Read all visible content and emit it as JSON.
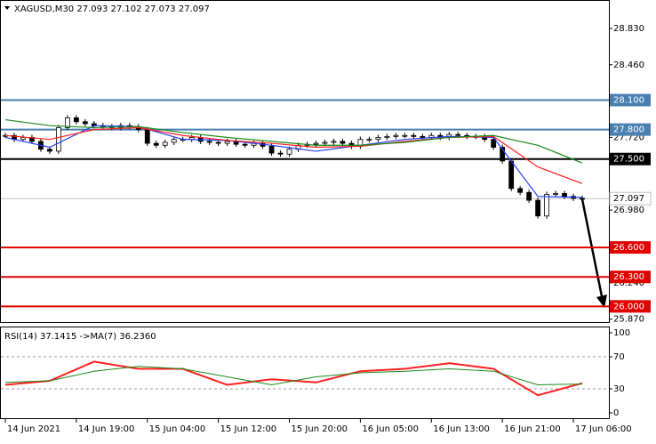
{
  "chart_data": [
    {
      "type": "candlestick",
      "title": "XAGUSD,M30  27.093 27.102 27.073 27.097",
      "closes": [
        27.74,
        27.7,
        27.72,
        27.68,
        27.6,
        27.58,
        27.82,
        27.92,
        27.88,
        27.86,
        27.84,
        27.83,
        27.82,
        27.84,
        27.83,
        27.8,
        27.66,
        27.64,
        27.67,
        27.7,
        27.7,
        27.72,
        27.68,
        27.67,
        27.66,
        27.68,
        27.65,
        27.64,
        27.66,
        27.63,
        27.56,
        27.55,
        27.6,
        27.64,
        27.65,
        27.66,
        27.67,
        27.68,
        27.66,
        27.63,
        27.7,
        27.7,
        27.72,
        27.73,
        27.74,
        27.74,
        27.73,
        27.72,
        27.74,
        27.72,
        27.75,
        27.74,
        27.73,
        27.73,
        27.7,
        27.62,
        27.48,
        27.2,
        27.16,
        27.08,
        26.92,
        27.14,
        27.15,
        27.12,
        27.1,
        27.097
      ],
      "ma_x": [
        0,
        5,
        10,
        15,
        20,
        25,
        30,
        35,
        40,
        45,
        50,
        55,
        60,
        65
      ],
      "series": [
        {
          "color": "#1f3fff",
          "values": [
            27.72,
            27.62,
            27.84,
            27.83,
            27.7,
            27.69,
            27.64,
            27.58,
            27.64,
            27.7,
            27.73,
            27.72,
            27.12,
            27.11
          ]
        },
        {
          "color": "#ff2020",
          "values": [
            27.74,
            27.7,
            27.8,
            27.82,
            27.74,
            27.69,
            27.66,
            27.62,
            27.63,
            27.68,
            27.72,
            27.73,
            27.42,
            27.25
          ]
        },
        {
          "color": "#1a8a1a",
          "values": [
            27.9,
            27.84,
            27.82,
            27.83,
            27.77,
            27.72,
            27.68,
            27.64,
            27.64,
            27.67,
            27.72,
            27.74,
            27.64,
            27.46
          ]
        }
      ],
      "levels": [
        {
          "value": 28.1,
          "label": "28.100",
          "color": "#4a7fb0"
        },
        {
          "value": 27.8,
          "label": "27.800",
          "color": "#4a7fb0"
        },
        {
          "value": 27.5,
          "label": "27.500",
          "color": "#000000"
        },
        {
          "value": 26.6,
          "label": "26.600",
          "color": "#e00000"
        },
        {
          "value": 26.3,
          "label": "26.300",
          "color": "#e00000"
        },
        {
          "value": 26.0,
          "label": "26.000",
          "color": "#e00000"
        }
      ],
      "current": {
        "value": 27.097,
        "label": "27.097"
      },
      "ylim": [
        25.84,
        29.11
      ],
      "yticks": [
        {
          "value": 28.83,
          "label": "28.830"
        },
        {
          "value": 28.46,
          "label": "28.460"
        },
        {
          "value": 27.72,
          "label": "27.720"
        },
        {
          "value": 26.98,
          "label": "26.980"
        },
        {
          "value": 26.24,
          "label": "26.240"
        },
        {
          "value": 25.87,
          "label": "25.870"
        }
      ],
      "xlim": [
        -0.5,
        68
      ],
      "xticks": [
        {
          "value": 0,
          "label": "14 Jun 2021"
        },
        {
          "value": 8,
          "label": "14 Jun 19:00"
        },
        {
          "value": 16,
          "label": "15 Jun 04:00"
        },
        {
          "value": 24,
          "label": "15 Jun 12:00"
        },
        {
          "value": 32,
          "label": "15 Jun 20:00"
        },
        {
          "value": 40,
          "label": "16 Jun 05:00"
        },
        {
          "value": 48,
          "label": "16 Jun 13:00"
        },
        {
          "value": 56,
          "label": "16 Jun 21:00"
        },
        {
          "value": 64,
          "label": "17 Jun 06:00"
        }
      ]
    },
    {
      "type": "line",
      "title": "RSI(14) 37.1415  ->MA(7) 36.2360",
      "x": [
        0,
        5,
        10,
        15,
        20,
        25,
        30,
        35,
        40,
        45,
        50,
        55,
        60,
        65
      ],
      "series": [
        {
          "color": "#ff2020",
          "values": [
            35,
            40,
            64,
            55,
            55,
            35,
            42,
            38,
            52,
            55,
            62,
            55,
            22,
            37
          ]
        },
        {
          "color": "#1a8a1a",
          "values": [
            38,
            40,
            52,
            58,
            55,
            45,
            35,
            45,
            50,
            52,
            55,
            52,
            35,
            36
          ]
        }
      ],
      "ylim": [
        -6.7,
        106.7
      ],
      "yticks": [
        100,
        70,
        30,
        0
      ],
      "dashed": [
        70,
        30
      ]
    }
  ]
}
